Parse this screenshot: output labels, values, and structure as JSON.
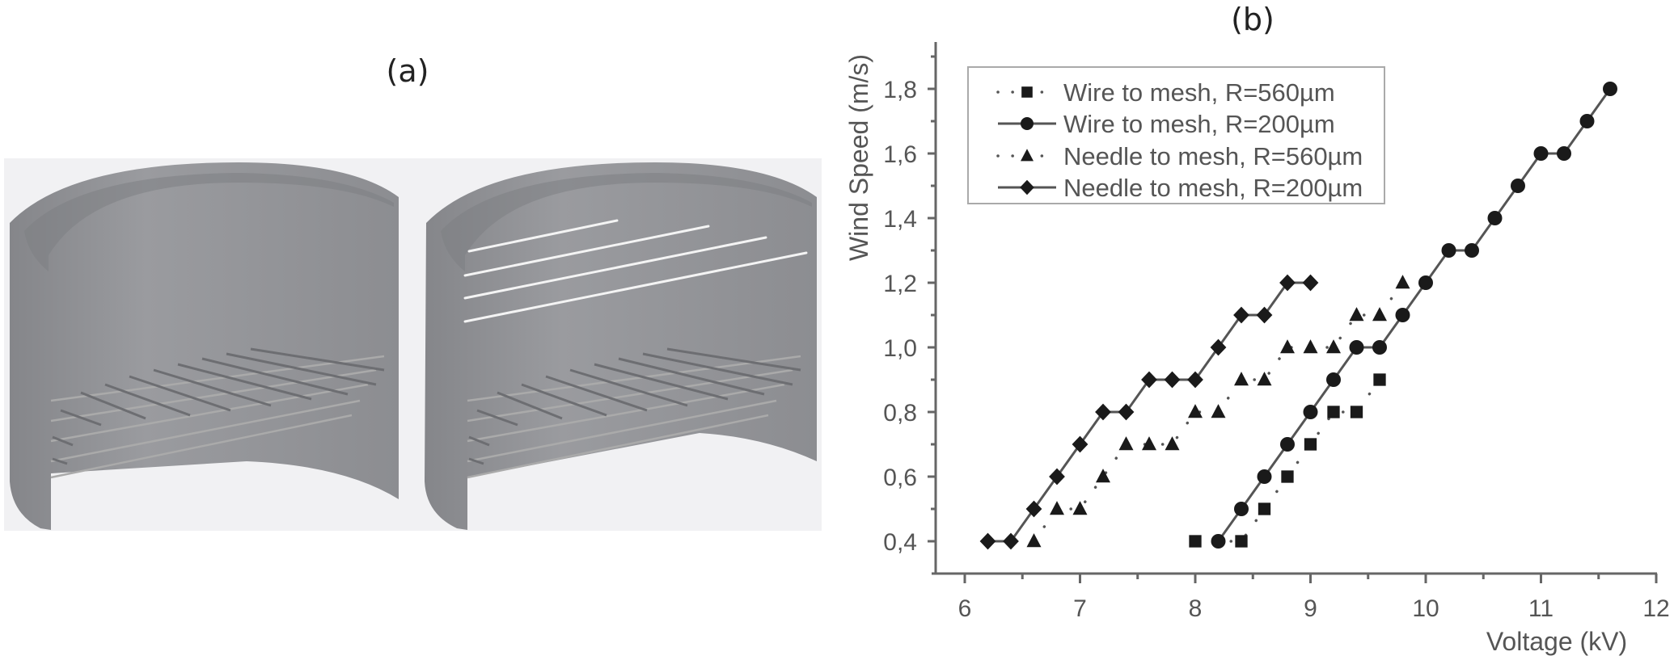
{
  "panels": {
    "a": {
      "label": "(a)"
    },
    "b": {
      "label": "(b)"
    }
  },
  "colors": {
    "axis": "#666666",
    "line": "#555555",
    "marker": "#1a1a1a",
    "text": "#555555",
    "cylinder": "#8e8f93",
    "panel_bg": "#f1f1f3"
  },
  "chart_data": {
    "type": "line",
    "title": "",
    "xlabel": "Voltage (kV)",
    "ylabel": "Wind Speed (m/s)",
    "xlim": [
      6,
      12
    ],
    "ylim": [
      0.4,
      1.9
    ],
    "xticks": [
      "6",
      "7",
      "8",
      "9",
      "10",
      "11",
      "12"
    ],
    "yticks": [
      "0,4",
      "0,6",
      "0,8",
      "1,0",
      "1,2",
      "1,4",
      "1,6",
      "1,8"
    ],
    "grid": false,
    "legend_position": "upper-left",
    "series": [
      {
        "name": "Wire to mesh, R=560µm",
        "marker": "square",
        "line": "dotted",
        "x": [
          8.0,
          8.4,
          8.6,
          8.8,
          9.0,
          9.2,
          9.4,
          9.6
        ],
        "y": [
          0.4,
          0.4,
          0.5,
          0.6,
          0.7,
          0.8,
          0.8,
          0.9
        ]
      },
      {
        "name": "Wire to mesh, R=200µm",
        "marker": "circle",
        "line": "solid",
        "x": [
          8.2,
          8.4,
          8.6,
          8.8,
          9.0,
          9.2,
          9.4,
          9.6,
          9.8,
          10.0,
          10.2,
          10.4,
          10.6,
          10.8,
          11.0,
          11.2,
          11.4,
          11.6
        ],
        "y": [
          0.4,
          0.5,
          0.6,
          0.7,
          0.8,
          0.9,
          1.0,
          1.0,
          1.1,
          1.2,
          1.3,
          1.3,
          1.4,
          1.5,
          1.6,
          1.6,
          1.7,
          1.8
        ]
      },
      {
        "name": "Needle to mesh, R=560µm",
        "marker": "triangle",
        "line": "dotted",
        "x": [
          6.6,
          6.8,
          7.0,
          7.2,
          7.4,
          7.6,
          7.8,
          8.0,
          8.2,
          8.4,
          8.6,
          8.8,
          9.0,
          9.2,
          9.4,
          9.6,
          9.8
        ],
        "y": [
          0.4,
          0.5,
          0.5,
          0.6,
          0.7,
          0.7,
          0.7,
          0.8,
          0.8,
          0.9,
          0.9,
          1.0,
          1.0,
          1.0,
          1.1,
          1.1,
          1.2
        ]
      },
      {
        "name": "Needle to mesh, R=200µm",
        "marker": "diamond",
        "line": "solid",
        "x": [
          6.2,
          6.4,
          6.6,
          6.8,
          7.0,
          7.2,
          7.4,
          7.6,
          7.8,
          8.0,
          8.2,
          8.4,
          8.6,
          8.8,
          9.0
        ],
        "y": [
          0.4,
          0.4,
          0.5,
          0.6,
          0.7,
          0.8,
          0.8,
          0.9,
          0.9,
          0.9,
          1.0,
          1.1,
          1.1,
          1.2,
          1.2
        ]
      }
    ]
  }
}
